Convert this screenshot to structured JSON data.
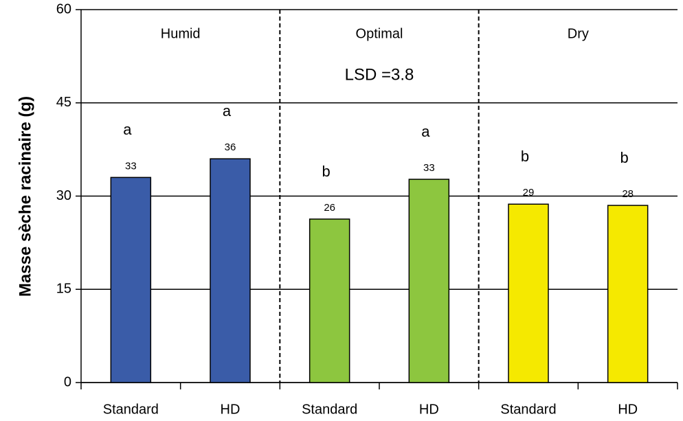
{
  "chart_data": {
    "type": "bar",
    "y_label": "Masse sèche racinaire (g)",
    "groups": [
      "Humid",
      "Optimal",
      "Dry"
    ],
    "annotation": "LSD =3.8",
    "categories": [
      "Standard",
      "HD",
      "Standard",
      "HD",
      "Standard",
      "HD"
    ],
    "values": [
      33,
      36,
      26.3,
      32.7,
      28.7,
      28.5
    ],
    "value_labels": [
      "33",
      "36",
      "26",
      "33",
      "29",
      "28"
    ],
    "significance_letters": [
      "a",
      "a",
      "b",
      "a",
      "b",
      "b"
    ],
    "colors": [
      "#3a5ca8",
      "#3a5ca8",
      "#8dc63f",
      "#8dc63f",
      "#f5e900",
      "#f5e900"
    ],
    "ylim": [
      0,
      60
    ],
    "yticks": [
      0,
      15,
      30,
      45,
      60
    ],
    "grid": true
  }
}
